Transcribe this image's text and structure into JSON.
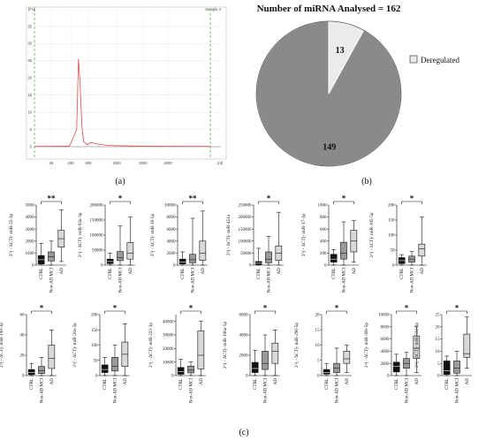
{
  "panel_labels": {
    "a": "(a)",
    "b": "(b)",
    "c": "(c)"
  },
  "chart_data": [
    {
      "type": "line",
      "panel": "a",
      "corner_label_left": "[FU]",
      "corner_label_right": "Sample 4",
      "x_axis_unit": "[nt]",
      "x_ticks": [
        "25",
        "200",
        "500",
        "1000",
        "2000",
        "4000"
      ],
      "y_ticks": [
        "35",
        "30",
        "25",
        "20",
        "15",
        "10",
        "5",
        "0"
      ],
      "ylim": [
        0,
        37
      ],
      "trace": {
        "color": "#e04a4a",
        "x": [
          0,
          10,
          20,
          24,
          25,
          26,
          27,
          28,
          30,
          32,
          35,
          40,
          45,
          55,
          70,
          85,
          100
        ],
        "y": [
          0.1,
          0.1,
          0.2,
          5,
          25.5,
          18,
          6,
          1.5,
          0.6,
          1.2,
          0.9,
          0.5,
          0.3,
          0.2,
          0.15,
          0.1,
          0.1
        ]
      }
    },
    {
      "type": "pie",
      "panel": "b",
      "title": "Number of miRNA Analysed = 162",
      "slices": [
        {
          "label": "13",
          "value": 13,
          "color": "#ebebeb"
        },
        {
          "label": "149",
          "value": 149,
          "color": "#8a8a8a"
        }
      ],
      "legend": [
        {
          "label": "Deregulated",
          "color": "#ebebeb"
        }
      ]
    },
    {
      "type": "box",
      "panel": "c",
      "groups": [
        "CTRL",
        "Non-AD MCI",
        "AD"
      ],
      "group_colors": [
        "#111111",
        "#9a9a9a",
        "#d9d9d9"
      ],
      "plots": [
        {
          "ylabel": "2^( - ΔCT)- miR-25-3p",
          "yticks": [
            "0",
            "1000",
            "2000",
            "3000",
            "4000",
            "5000"
          ],
          "ylim": [
            0,
            5000
          ],
          "sig": "**",
          "boxes": [
            {
              "min": 0,
              "q1": 100,
              "med": 450,
              "q3": 800,
              "max": 1800
            },
            {
              "min": 0,
              "q1": 350,
              "med": 700,
              "q3": 1100,
              "max": 2000
            },
            {
              "min": 300,
              "q1": 1500,
              "med": 2200,
              "q3": 2900,
              "max": 4600
            }
          ]
        },
        {
          "ylabel": "2^( - ΔCT)- miR-92a-3p",
          "yticks": [
            "0",
            "50000",
            "100000",
            "150000",
            "200000"
          ],
          "ylim": [
            0,
            200000
          ],
          "sig": "*",
          "boxes": [
            {
              "min": 0,
              "q1": 5000,
              "med": 12000,
              "q3": 20000,
              "max": 40000
            },
            {
              "min": 0,
              "q1": 15000,
              "med": 25000,
              "q3": 45000,
              "max": 130000
            },
            {
              "min": 0,
              "q1": 20000,
              "med": 40000,
              "q3": 75000,
              "max": 160000
            }
          ]
        },
        {
          "ylabel": "2^( - ΔCT)- miR-16-5p",
          "yticks": [
            "0",
            "2000",
            "4000",
            "6000",
            "8000",
            "10000"
          ],
          "ylim": [
            0,
            10000
          ],
          "sig": "**",
          "boxes": [
            {
              "min": 0,
              "q1": 200,
              "med": 500,
              "q3": 1000,
              "max": 2200
            },
            {
              "min": 0,
              "q1": 400,
              "med": 900,
              "q3": 1800,
              "max": 7800
            },
            {
              "min": 0,
              "q1": 800,
              "med": 2000,
              "q3": 4000,
              "max": 9000
            }
          ]
        },
        {
          "ylabel": "2^( - ΔCT)- miR-451a",
          "yticks": [
            "0",
            "50000",
            "100000",
            "150000",
            "200000",
            "250000"
          ],
          "ylim": [
            0,
            250000
          ],
          "sig": "*",
          "boxes": [
            {
              "min": 0,
              "q1": 2000,
              "med": 8000,
              "q3": 15000,
              "max": 70000
            },
            {
              "min": 0,
              "q1": 10000,
              "med": 25000,
              "q3": 55000,
              "max": 120000
            },
            {
              "min": 0,
              "q1": 20000,
              "med": 50000,
              "q3": 80000,
              "max": 220000
            }
          ]
        },
        {
          "ylabel": "2^( - ΔCT)- miR-17-3p",
          "yticks": [
            "0",
            "200",
            "400",
            "600",
            "800",
            "1000"
          ],
          "ylim": [
            0,
            1000
          ],
          "sig": "*",
          "boxes": [
            {
              "min": 0,
              "q1": 50,
              "med": 100,
              "q3": 180,
              "max": 260
            },
            {
              "min": 0,
              "q1": 100,
              "med": 200,
              "q3": 380,
              "max": 720
            },
            {
              "min": 50,
              "q1": 220,
              "med": 400,
              "q3": 580,
              "max": 740
            }
          ]
        },
        {
          "ylabel": "2^( - ΔCT)- miR-195-5p",
          "yticks": [
            "0",
            "50",
            "100",
            "150",
            "200"
          ],
          "ylim": [
            0,
            200
          ],
          "sig": "*",
          "boxes": [
            {
              "min": 0,
              "q1": 5,
              "med": 15,
              "q3": 25,
              "max": 35
            },
            {
              "min": 0,
              "q1": 10,
              "med": 20,
              "q3": 30,
              "max": 45
            },
            {
              "min": 0,
              "q1": 30,
              "med": 55,
              "q3": 70,
              "max": 160
            }
          ]
        },
        {
          "ylabel": "2^( - ΔCT)- miR-190-3p",
          "yticks": [
            "0",
            "20",
            "40",
            "60"
          ],
          "ylim": [
            0,
            60
          ],
          "sig": "*",
          "boxes": [
            {
              "min": 0,
              "q1": 1,
              "med": 3,
              "q3": 6,
              "max": 12
            },
            {
              "min": 0,
              "q1": 2,
              "med": 5,
              "q3": 9,
              "max": 18
            },
            {
              "min": 0,
              "q1": 7,
              "med": 17,
              "q3": 30,
              "max": 45
            }
          ]
        },
        {
          "ylabel": "2^( - ΔCT)- miR-20a-5p",
          "yticks": [
            "0",
            "50",
            "100",
            "150",
            "200"
          ],
          "ylim": [
            0,
            200
          ],
          "sig": "*",
          "boxes": [
            {
              "min": 0,
              "q1": 10,
              "med": 20,
              "q3": 35,
              "max": 60
            },
            {
              "min": 0,
              "q1": 15,
              "med": 30,
              "q3": 60,
              "max": 100
            },
            {
              "min": 0,
              "q1": 30,
              "med": 70,
              "q3": 110,
              "max": 170
            }
          ]
        },
        {
          "ylabel": "2^( - ΔCT)- miR-222-3p",
          "yticks": [
            "0",
            "10000",
            "20000",
            "30000",
            "40000"
          ],
          "ylim": [
            0,
            45000
          ],
          "sig": "*",
          "boxes": [
            {
              "min": 0,
              "q1": 1000,
              "med": 3000,
              "q3": 6000,
              "max": 12000
            },
            {
              "min": 0,
              "q1": 2000,
              "med": 4000,
              "q3": 7000,
              "max": 10000
            },
            {
              "min": 0,
              "q1": 5000,
              "med": 15000,
              "q3": 33000,
              "max": 40000
            }
          ]
        },
        {
          "ylabel": "2^( - ΔCT)- miR-106a-5p",
          "yticks": [
            "0",
            "2000",
            "4000",
            "6000"
          ],
          "ylim": [
            0,
            6000
          ],
          "sig": "*",
          "boxes": [
            {
              "min": 0,
              "q1": 300,
              "med": 700,
              "q3": 1300,
              "max": 2500
            },
            {
              "min": 0,
              "q1": 600,
              "med": 1200,
              "q3": 2400,
              "max": 4000
            },
            {
              "min": 0,
              "q1": 1200,
              "med": 2400,
              "q3": 3200,
              "max": 4500
            }
          ]
        },
        {
          "ylabel": "2^( - ΔCT)- miR-296-5p",
          "yticks": [
            "0",
            "5",
            "10",
            "15",
            "20"
          ],
          "ylim": [
            0,
            20
          ],
          "sig": "*",
          "boxes": [
            {
              "min": 0,
              "q1": 0.5,
              "med": 1,
              "q3": 2,
              "max": 4
            },
            {
              "min": 0,
              "q1": 1,
              "med": 2.5,
              "q3": 4,
              "max": 9
            },
            {
              "min": 1,
              "q1": 4,
              "med": 5.5,
              "q3": 8,
              "max": 10
            }
          ]
        },
        {
          "ylabel": "2^( - ΔCT)- miR-30b-5p",
          "yticks": [
            "0",
            "2000",
            "4000",
            "6000",
            "8000",
            "10000"
          ],
          "ylim": [
            0,
            10000
          ],
          "sig": "*",
          "boxes": [
            {
              "min": 0,
              "q1": 600,
              "med": 1500,
              "q3": 2200,
              "max": 3500
            },
            {
              "min": 0,
              "q1": 1200,
              "med": 2000,
              "q3": 2800,
              "max": 3800
            },
            {
              "min": 500,
              "q1": 2800,
              "med": 4500,
              "q3": 6500,
              "max": 8000
            }
          ]
        },
        {
          "ylabel": "2^( - ΔCT)- miR-532-3p",
          "yticks": [
            "0",
            "5",
            "10",
            "15",
            "20",
            "25"
          ],
          "ylim": [
            0,
            25
          ],
          "sig": "*",
          "boxes": [
            {
              "min": 0,
              "q1": 0.5,
              "med": 2,
              "q3": 6,
              "max": 8
            },
            {
              "min": 0,
              "q1": 1,
              "med": 3,
              "q3": 6,
              "max": 10
            },
            {
              "min": 3,
              "q1": 7.5,
              "med": 9,
              "q3": 17,
              "max": 24
            }
          ]
        }
      ]
    }
  ]
}
